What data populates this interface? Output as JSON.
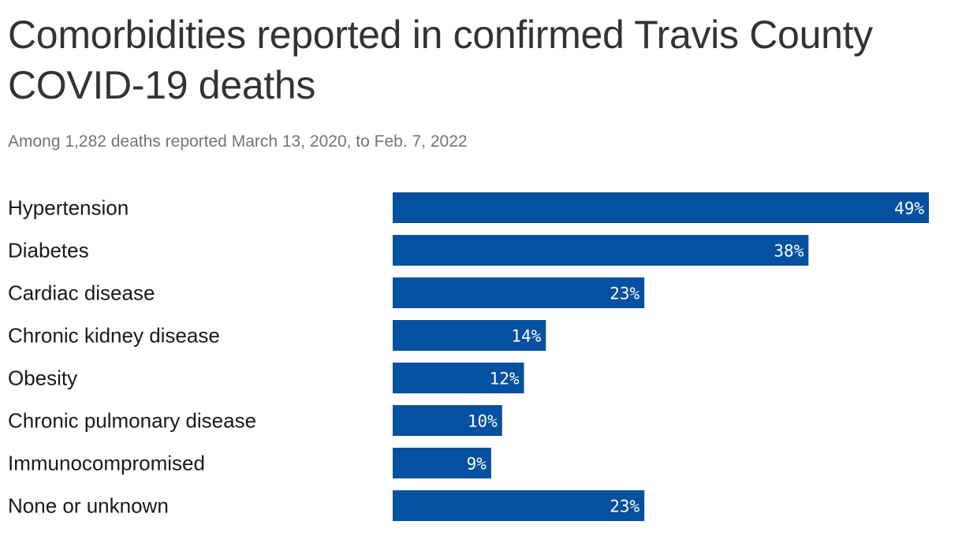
{
  "chart_data": {
    "type": "bar",
    "orientation": "horizontal",
    "title": "Comorbidities reported in confirmed Travis County COVID-19 deaths",
    "subtitle": "Among 1,282 deaths reported March 13, 2020, to Feb. 7, 2022",
    "categories": [
      "Hypertension",
      "Diabetes",
      "Cardiac disease",
      "Chronic kidney disease",
      "Obesity",
      "Chronic pulmonary disease",
      "Immunocompromised",
      "None or unknown"
    ],
    "values": [
      49,
      38,
      23,
      14,
      12,
      10,
      9,
      23
    ],
    "value_labels": [
      "49%",
      "38%",
      "23%",
      "14%",
      "12%",
      "10%",
      "9%",
      "23%"
    ],
    "unit": "%",
    "xlim": [
      0,
      49
    ],
    "bar_color": "#0550a0",
    "grid": false
  }
}
